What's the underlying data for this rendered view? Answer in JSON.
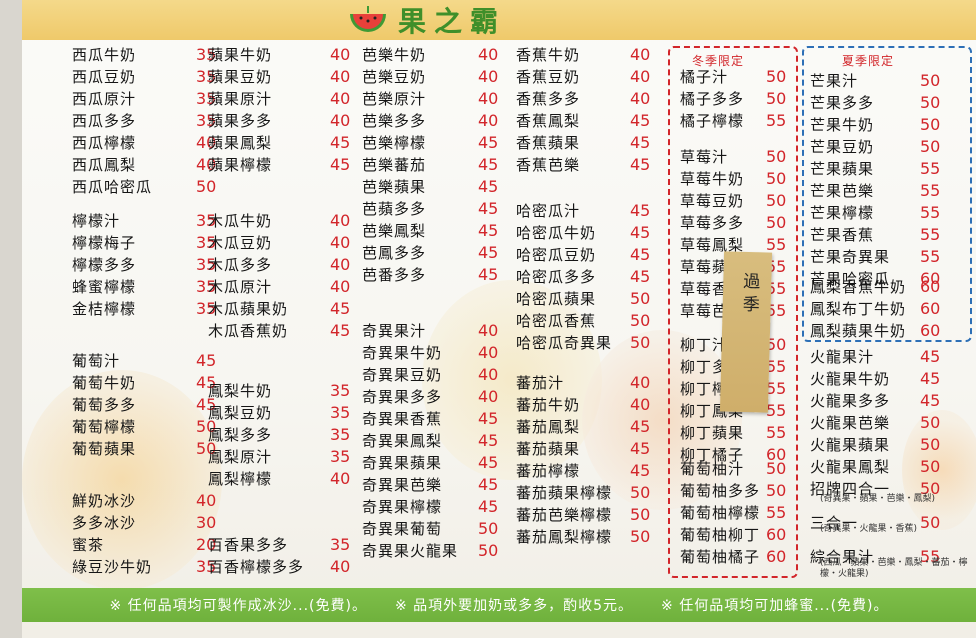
{
  "header": {
    "title": "果之霸"
  },
  "seasonal": {
    "winter": "冬季限定",
    "summer": "夏季限定"
  },
  "sticky_note": "過季",
  "footer": [
    "※ 任何品項均可製作成冰沙...(免費)。",
    "※ 品項外要加奶或多多，酌收5元。",
    "※ 任何品項均可加蜂蜜...(免費)。"
  ],
  "columns": [
    {
      "groups": [
        [
          [
            "西瓜牛奶",
            "35"
          ],
          [
            "西瓜豆奶",
            "35"
          ],
          [
            "西瓜原汁",
            "35"
          ],
          [
            "西瓜多多",
            "35"
          ],
          [
            "西瓜檸檬",
            "40"
          ],
          [
            "西瓜鳳梨",
            "40"
          ],
          [
            "西瓜哈密瓜",
            "50"
          ]
        ],
        [
          [
            "檸檬汁",
            "35"
          ],
          [
            "檸檬梅子",
            "35"
          ],
          [
            "檸檬多多",
            "35"
          ],
          [
            "蜂蜜檸檬",
            "35"
          ],
          [
            "金桔檸檬",
            "35"
          ]
        ],
        [
          [
            "葡萄汁",
            "45"
          ],
          [
            "葡萄牛奶",
            "45"
          ],
          [
            "葡萄多多",
            "45"
          ],
          [
            "葡萄檸檬",
            "50"
          ],
          [
            "葡萄蘋果",
            "50"
          ]
        ],
        [
          [
            "鮮奶冰沙",
            "40"
          ],
          [
            "多多冰沙",
            "30"
          ],
          [
            "蜜茶",
            "20"
          ],
          [
            "綠豆沙牛奶",
            "35"
          ]
        ]
      ]
    },
    {
      "groups": [
        [
          [
            "蘋果牛奶",
            "40"
          ],
          [
            "蘋果豆奶",
            "40"
          ],
          [
            "蘋果原汁",
            "40"
          ],
          [
            "蘋果多多",
            "40"
          ],
          [
            "蘋果鳳梨",
            "45"
          ],
          [
            "蘋果檸檬",
            "45"
          ]
        ],
        [
          [
            "木瓜牛奶",
            "40"
          ],
          [
            "木瓜豆奶",
            "40"
          ],
          [
            "木瓜多多",
            "40"
          ],
          [
            "木瓜原汁",
            "40"
          ],
          [
            "木瓜蘋果奶",
            "45"
          ],
          [
            "木瓜香蕉奶",
            "45"
          ]
        ],
        [
          [
            "鳳梨牛奶",
            "35"
          ],
          [
            "鳳梨豆奶",
            "35"
          ],
          [
            "鳳梨多多",
            "35"
          ],
          [
            "鳳梨原汁",
            "35"
          ],
          [
            "鳳梨檸檬",
            "40"
          ]
        ],
        [
          [
            "百香果多多",
            "35"
          ],
          [
            "百香檸檬多多",
            "40"
          ]
        ]
      ]
    },
    {
      "groups": [
        [
          [
            "芭樂牛奶",
            "40"
          ],
          [
            "芭樂豆奶",
            "40"
          ],
          [
            "芭樂原汁",
            "40"
          ],
          [
            "芭樂多多",
            "40"
          ],
          [
            "芭樂檸檬",
            "45"
          ],
          [
            "芭樂蕃茄",
            "45"
          ],
          [
            "芭樂蘋果",
            "45"
          ],
          [
            "芭蘋多多",
            "45"
          ],
          [
            "芭樂鳳梨",
            "45"
          ],
          [
            "芭鳳多多",
            "45"
          ],
          [
            "芭番多多",
            "45"
          ]
        ],
        [
          [
            "奇異果汁",
            "40"
          ],
          [
            "奇異果牛奶",
            "40"
          ],
          [
            "奇異果豆奶",
            "40"
          ],
          [
            "奇異果多多",
            "40"
          ],
          [
            "奇異果香蕉",
            "45"
          ],
          [
            "奇異果鳳梨",
            "45"
          ],
          [
            "奇異果蘋果",
            "45"
          ],
          [
            "奇異果芭樂",
            "45"
          ],
          [
            "奇異果檸檬",
            "45"
          ],
          [
            "奇異果葡萄",
            "50"
          ],
          [
            "奇異果火龍果",
            "50"
          ]
        ]
      ]
    },
    {
      "groups": [
        [
          [
            "香蕉牛奶",
            "40"
          ],
          [
            "香蕉豆奶",
            "40"
          ],
          [
            "香蕉多多",
            "40"
          ],
          [
            "香蕉鳳梨",
            "45"
          ],
          [
            "香蕉蘋果",
            "45"
          ],
          [
            "香蕉芭樂",
            "45"
          ]
        ],
        [
          [
            "哈密瓜汁",
            "45"
          ],
          [
            "哈密瓜牛奶",
            "45"
          ],
          [
            "哈密瓜豆奶",
            "45"
          ],
          [
            "哈密瓜多多",
            "45"
          ],
          [
            "哈密瓜蘋果",
            "50"
          ],
          [
            "哈密瓜香蕉",
            "50"
          ],
          [
            "哈密瓜奇異果",
            "50"
          ]
        ],
        [
          [
            "蕃茄汁",
            "40"
          ],
          [
            "蕃茄牛奶",
            "40"
          ],
          [
            "蕃茄鳳梨",
            "45"
          ],
          [
            "蕃茄蘋果",
            "45"
          ],
          [
            "蕃茄檸檬",
            "45"
          ],
          [
            "蕃茄蘋果檸檬",
            "50"
          ],
          [
            "蕃茄芭樂檸檬",
            "50"
          ],
          [
            "蕃茄鳳梨檸檬",
            "50"
          ]
        ]
      ]
    },
    {
      "groups": [
        [
          [
            "橘子汁",
            "50"
          ],
          [
            "橘子多多",
            "50"
          ],
          [
            "橘子檸檬",
            "55"
          ]
        ],
        [
          [
            "草莓汁",
            "50"
          ],
          [
            "草莓牛奶",
            "50"
          ],
          [
            "草莓豆奶",
            "50"
          ],
          [
            "草莓多多",
            "50"
          ],
          [
            "草莓鳳梨",
            "55"
          ],
          [
            "草莓蘋果",
            "55"
          ],
          [
            "草莓香蕉",
            "55"
          ],
          [
            "草莓芭樂",
            "55"
          ]
        ],
        [
          [
            "柳丁汁",
            "50"
          ],
          [
            "柳丁多多",
            "55"
          ],
          [
            "柳丁檸檬",
            "55"
          ],
          [
            "柳丁鳳梨",
            "55"
          ],
          [
            "柳丁蘋果",
            "55"
          ],
          [
            "柳丁橘子",
            "60"
          ]
        ],
        [
          [
            "葡萄柚汁",
            "50"
          ],
          [
            "葡萄柚多多",
            "50"
          ],
          [
            "葡萄柚檸檬",
            "55"
          ],
          [
            "葡萄柚柳丁",
            "60"
          ],
          [
            "葡萄柚橘子",
            "60"
          ]
        ]
      ]
    },
    {
      "groups": [
        [
          [
            "芒果汁",
            "50"
          ],
          [
            "芒果多多",
            "50"
          ],
          [
            "芒果牛奶",
            "50"
          ],
          [
            "芒果豆奶",
            "50"
          ],
          [
            "芒果蘋果",
            "55"
          ],
          [
            "芒果芭樂",
            "55"
          ],
          [
            "芒果檸檬",
            "55"
          ],
          [
            "芒果香蕉",
            "55"
          ],
          [
            "芒果奇異果",
            "55"
          ],
          [
            "芒果哈密瓜",
            "60"
          ]
        ],
        [
          [
            "鳳梨香蕉牛奶",
            "60"
          ],
          [
            "鳳梨布丁牛奶",
            "60"
          ],
          [
            "鳳梨蘋果牛奶",
            "60"
          ]
        ],
        [
          [
            "火龍果汁",
            "45"
          ],
          [
            "火龍果牛奶",
            "45"
          ],
          [
            "火龍果多多",
            "45"
          ],
          [
            "火龍果芭樂",
            "50"
          ],
          [
            "火龍果蘋果",
            "50"
          ],
          [
            "火龍果鳳梨",
            "50"
          ]
        ],
        [
          [
            "招牌四合一",
            "50"
          ],
          [
            "三合一",
            "50"
          ],
          [
            "綜合果汁",
            "55"
          ]
        ]
      ]
    }
  ],
  "combo_notes": {
    "four_in_one": "(奇異果・蘋果・芭樂・鳳梨)",
    "three_in_one": "(奇異果・火龍果・香蕉)",
    "mixed": "(西瓜・蘋果・芭樂・鳳梨・蕃茄・檸檬・火龍果)"
  },
  "colors": {
    "price": "#d2252a",
    "header": "#efc96a",
    "footer": "#6fb13c",
    "winter_box": "#d2252a",
    "summer_box": "#2d6fb6"
  }
}
